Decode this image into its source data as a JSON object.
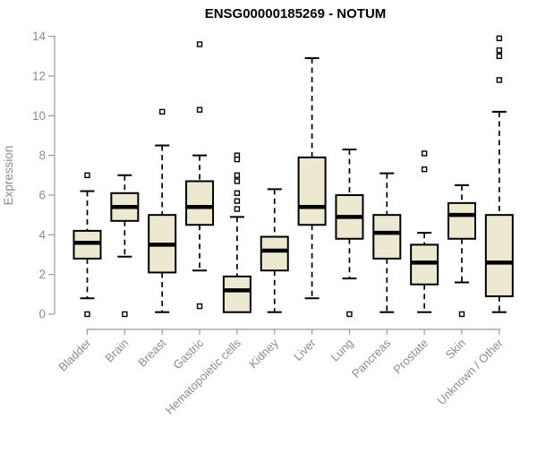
{
  "chart_data": {
    "type": "boxplot",
    "title": "ENSG00000185269 - NOTUM",
    "ylabel": "Expression",
    "xlabel": "",
    "ylim": [
      0,
      14
    ],
    "yticks": [
      0,
      2,
      4,
      6,
      8,
      10,
      12,
      14
    ],
    "grid": false,
    "legend": false,
    "categories": [
      "Bladder",
      "Brain",
      "Breast",
      "Gastric",
      "Hematopoietic cells",
      "Kidney",
      "Liver",
      "Lung",
      "Pancreas",
      "Prostate",
      "Skin",
      "Unknown / Other"
    ],
    "series": [
      {
        "name": "Bladder",
        "whisker_low": 0.8,
        "q1": 2.8,
        "median": 3.6,
        "q3": 4.2,
        "whisker_high": 6.2,
        "outliers": [
          7.0,
          0
        ]
      },
      {
        "name": "Brain",
        "whisker_low": 2.9,
        "q1": 4.7,
        "median": 5.4,
        "q3": 6.1,
        "whisker_high": 7.0,
        "outliers": [
          0
        ]
      },
      {
        "name": "Breast",
        "whisker_low": 0.1,
        "q1": 2.1,
        "median": 3.5,
        "q3": 5.0,
        "whisker_high": 8.5,
        "outliers": [
          10.2
        ]
      },
      {
        "name": "Gastric",
        "whisker_low": 2.2,
        "q1": 4.5,
        "median": 5.4,
        "q3": 6.7,
        "whisker_high": 8.0,
        "outliers": [
          13.6,
          10.3,
          0.4
        ]
      },
      {
        "name": "Hematopoietic cells",
        "whisker_low": null,
        "q1": 0.1,
        "median": 1.2,
        "q3": 1.9,
        "whisker_high": 4.9,
        "outliers": [
          8.0,
          7.8,
          7.0,
          6.7,
          6.1,
          5.7,
          5.3
        ]
      },
      {
        "name": "Kidney",
        "whisker_low": 0.1,
        "q1": 2.2,
        "median": 3.2,
        "q3": 3.9,
        "whisker_high": 6.3,
        "outliers": []
      },
      {
        "name": "Liver",
        "whisker_low": 0.8,
        "q1": 4.5,
        "median": 5.4,
        "q3": 7.9,
        "whisker_high": 12.9,
        "outliers": []
      },
      {
        "name": "Lung",
        "whisker_low": 1.8,
        "q1": 3.8,
        "median": 4.9,
        "q3": 6.0,
        "whisker_high": 8.3,
        "outliers": [
          0
        ]
      },
      {
        "name": "Pancreas",
        "whisker_low": 0.1,
        "q1": 2.8,
        "median": 4.1,
        "q3": 5.0,
        "whisker_high": 7.1,
        "outliers": []
      },
      {
        "name": "Prostate",
        "whisker_low": 0.1,
        "q1": 1.5,
        "median": 2.6,
        "q3": 3.5,
        "whisker_high": 4.1,
        "outliers": [
          8.1,
          7.3
        ]
      },
      {
        "name": "Skin",
        "whisker_low": 1.6,
        "q1": 3.8,
        "median": 5.0,
        "q3": 5.6,
        "whisker_high": 6.5,
        "outliers": [
          0
        ]
      },
      {
        "name": "Unknown / Other",
        "whisker_low": 0.1,
        "q1": 0.9,
        "median": 2.6,
        "q3": 5.0,
        "whisker_high": 10.2,
        "outliers": [
          13.9,
          13.3,
          13.0,
          11.8
        ]
      }
    ],
    "colors": {
      "box_fill": "#ede8d0",
      "box_stroke": "#000000",
      "median": "#000000",
      "whisker": "#000000",
      "outlier_stroke": "#000000",
      "outlier_fill": "#ffffff",
      "axis_line": "#9a9a9a",
      "axis_text": "#8c8c8c",
      "title": "#000000",
      "background": "#ffffff"
    }
  }
}
